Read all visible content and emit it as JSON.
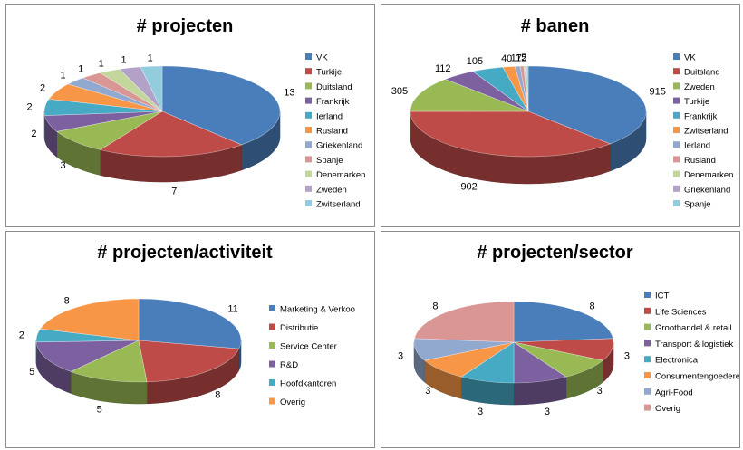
{
  "chart_data": [
    {
      "type": "pie",
      "title": "# projecten",
      "categories": [
        "VK",
        "Turkije",
        "Duitsland",
        "Frankrijk",
        "Ierland",
        "Rusland",
        "Griekenland",
        "Spanje",
        "Denemarken",
        "Zweden",
        "Zwitserland"
      ],
      "values": [
        13,
        7,
        3,
        2,
        2,
        2,
        1,
        1,
        1,
        1,
        1
      ],
      "colors": [
        "#4a7ebb",
        "#be4b48",
        "#98b954",
        "#7d60a0",
        "#46aac5",
        "#f79646",
        "#92a9cf",
        "#d99694",
        "#c3d69b",
        "#b2a2c7",
        "#93cddd"
      ],
      "legend": "right",
      "style": "3d"
    },
    {
      "type": "pie",
      "title": "# banen",
      "categories": [
        "VK",
        "Duitsland",
        "Zweden",
        "Turkije",
        "Frankrijk",
        "Zwitserland",
        "Ierland",
        "Rusland",
        "Denemarken",
        "Griekenland",
        "Spanje"
      ],
      "values": [
        915,
        902,
        305,
        112,
        105,
        40,
        17,
        12,
        5,
        5,
        5
      ],
      "colors": [
        "#4a7ebb",
        "#be4b48",
        "#98b954",
        "#7d60a0",
        "#46aac5",
        "#f79646",
        "#92a9cf",
        "#d99694",
        "#c3d69b",
        "#b2a2c7",
        "#93cddd"
      ],
      "visible_labels": [
        "915",
        "902",
        "305",
        "112",
        "105",
        "40",
        "17",
        "12",
        "5",
        "",
        ""
      ],
      "legend": "right",
      "style": "3d"
    },
    {
      "type": "pie",
      "title": "# projecten/activiteit",
      "categories": [
        "Marketing & Verkoo",
        "Distributie",
        "Service Center",
        "R&D",
        "Hoofdkantoren",
        "Overig"
      ],
      "values": [
        11,
        8,
        5,
        5,
        2,
        8
      ],
      "colors": [
        "#4a7ebb",
        "#be4b48",
        "#98b954",
        "#7d60a0",
        "#46aac5",
        "#f79646"
      ],
      "legend": "right",
      "style": "3d"
    },
    {
      "type": "pie",
      "title": "# projecten/sector",
      "categories": [
        "ICT",
        "Life Sciences",
        "Groothandel & retail",
        "Transport & logistiek",
        "Electronica",
        "Consumentengoederen",
        "Agri-Food",
        "Overig"
      ],
      "values": [
        8,
        3,
        3,
        3,
        3,
        3,
        3,
        8
      ],
      "colors": [
        "#4a7ebb",
        "#be4b48",
        "#98b954",
        "#7d60a0",
        "#46aac5",
        "#f79646",
        "#92a9cf",
        "#d99694"
      ],
      "legend": "right",
      "style": "3d"
    }
  ]
}
